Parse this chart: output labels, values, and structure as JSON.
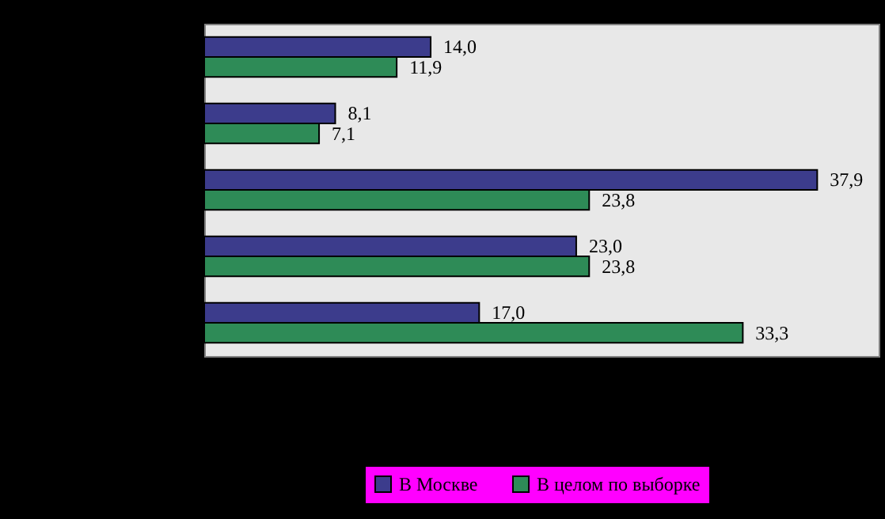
{
  "chart_data": {
    "type": "bar",
    "orientation": "horizontal",
    "categories": [
      null,
      null,
      null,
      null,
      null
    ],
    "series": [
      {
        "name": "В Москве",
        "color": "#3c3c8c",
        "values": [
          14.0,
          8.1,
          37.9,
          23.0,
          17.0
        ],
        "value_labels": [
          "14,0",
          "8,1",
          "37,9",
          "23,0",
          "17,0"
        ]
      },
      {
        "name": "В целом по выборке",
        "color": "#2e8b57",
        "values": [
          11.9,
          7.1,
          23.8,
          23.8,
          33.3
        ],
        "value_labels": [
          "11,9",
          "7,1",
          "23,8",
          "23,8",
          "33,3"
        ]
      }
    ],
    "xlim": [
      0,
      41.7
    ],
    "tick_labels": false,
    "grid": false,
    "legend": "bottom"
  }
}
